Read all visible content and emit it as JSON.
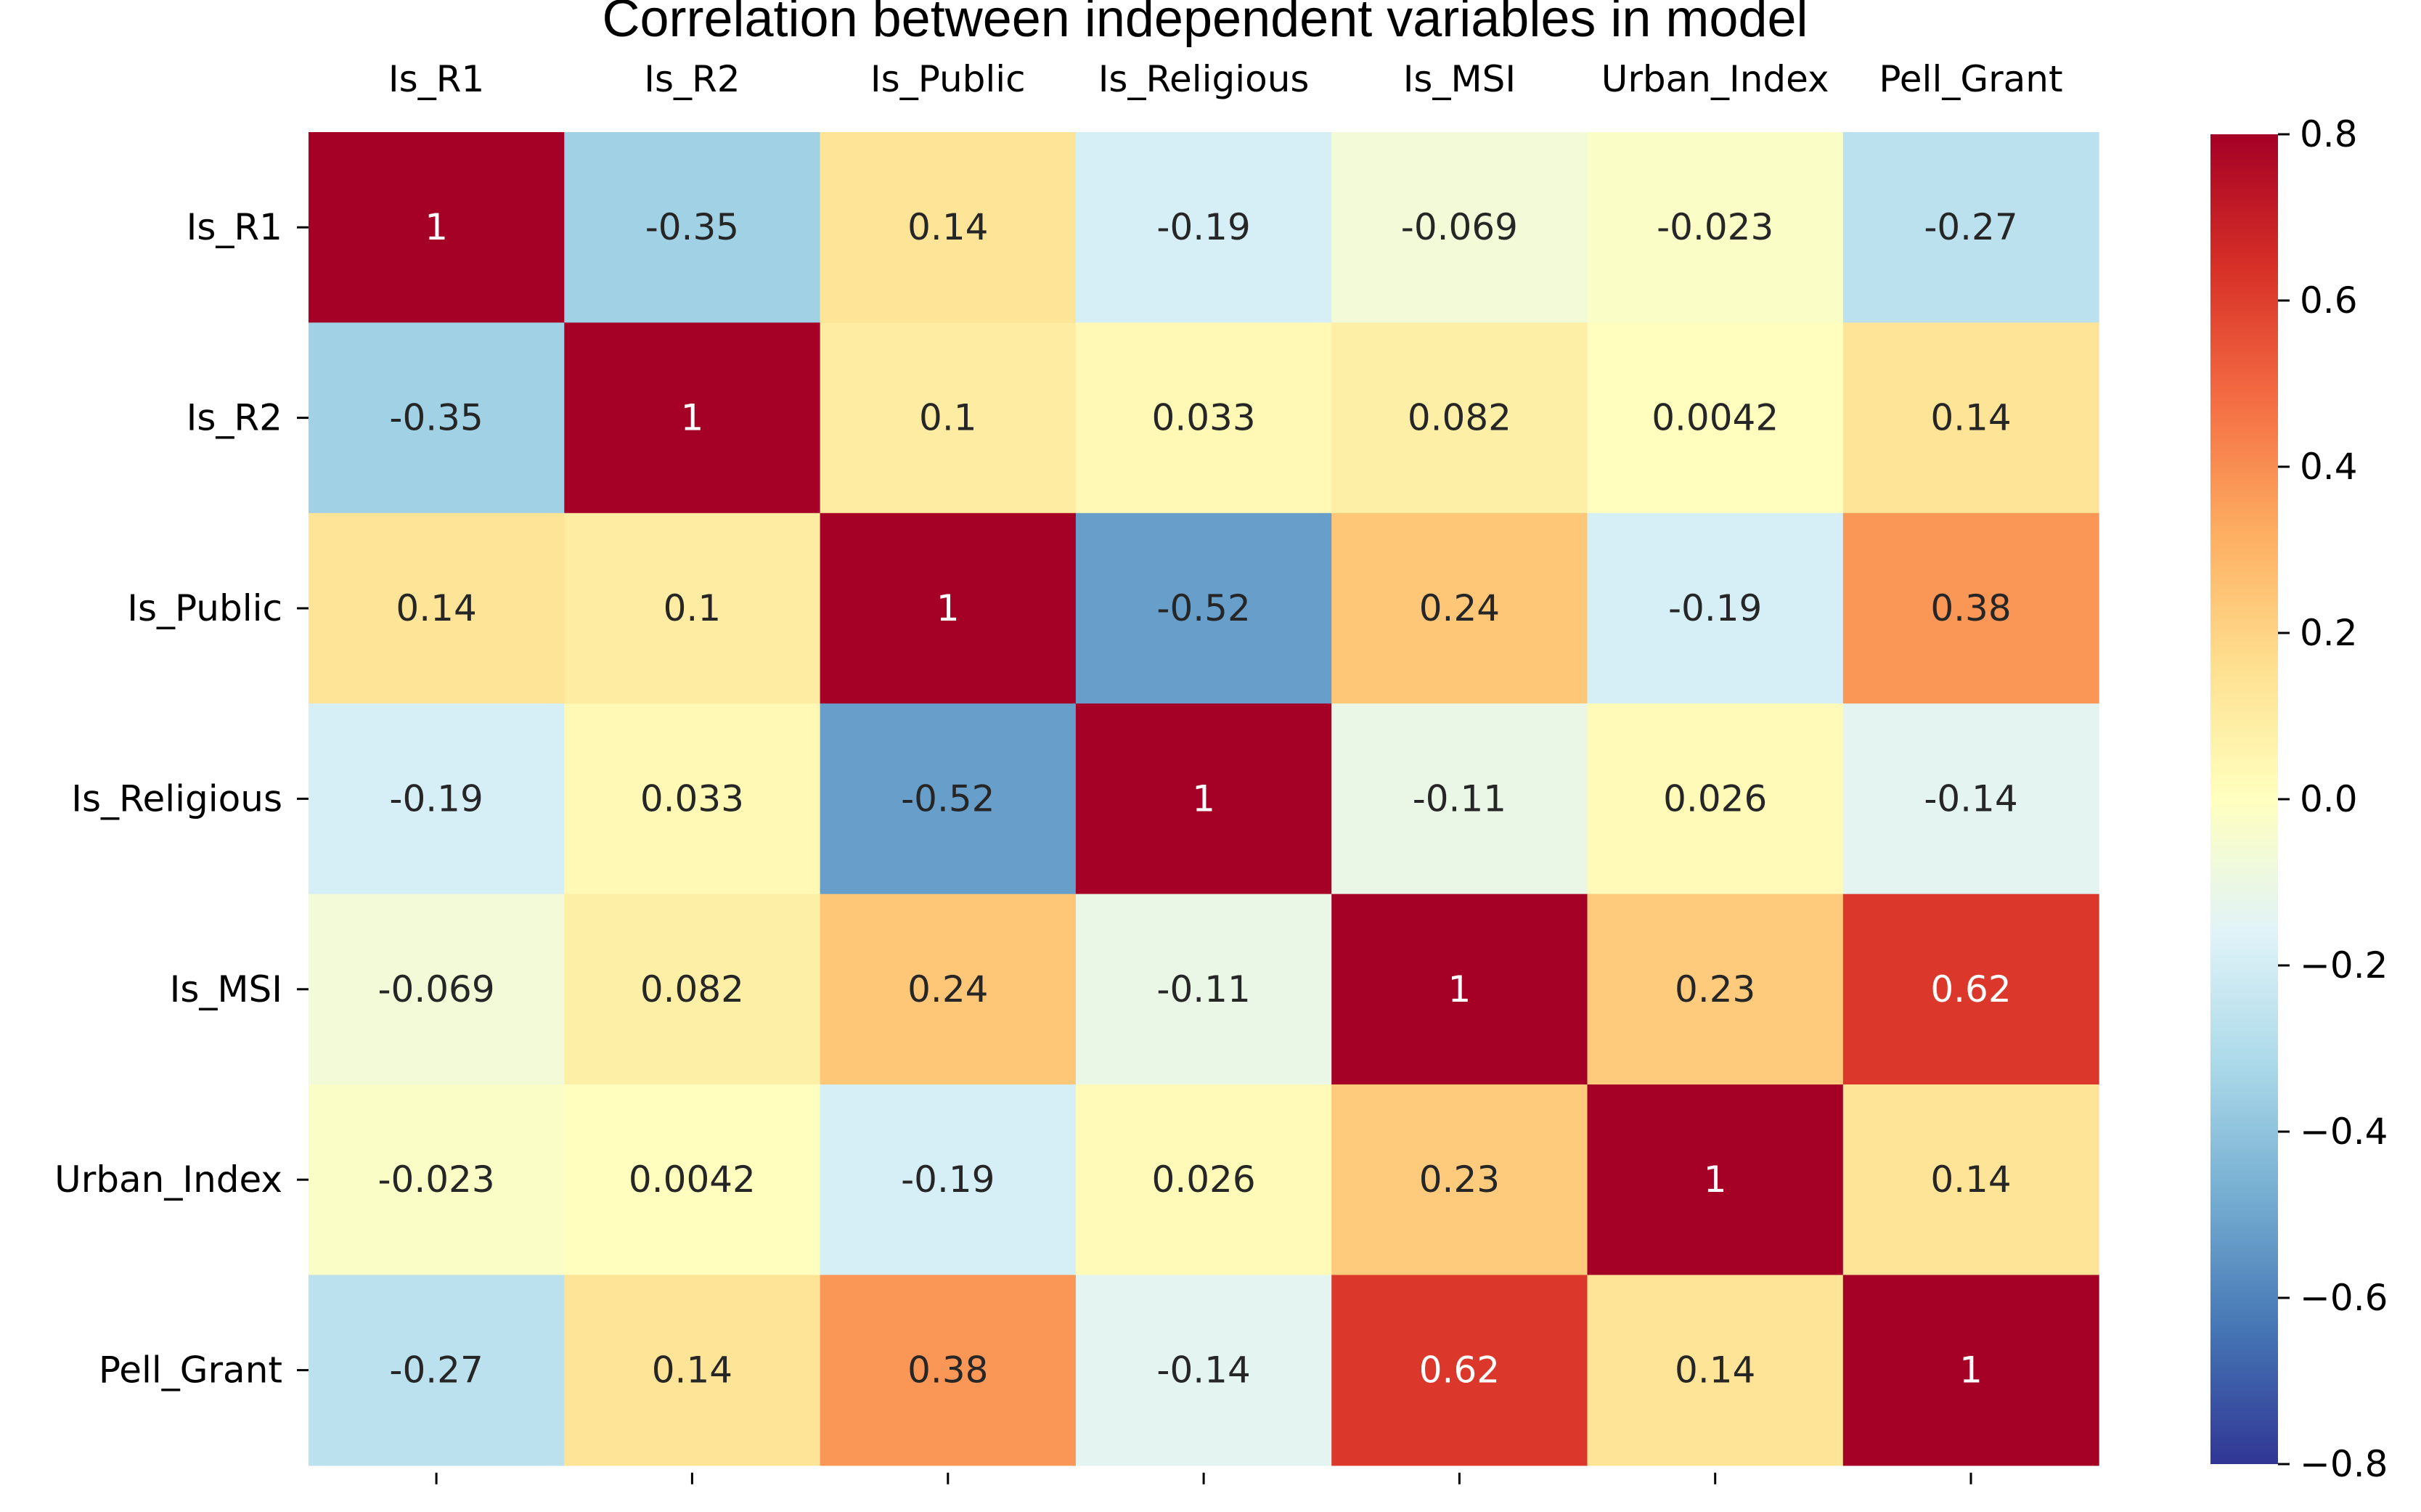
{
  "chart_data": {
    "type": "heatmap",
    "title": "Correlation between independent variables in model",
    "row_labels": [
      "Is_R1",
      "Is_R2",
      "Is_Public",
      "Is_Religious",
      "Is_MSI",
      "Urban_Index",
      "Pell_Grant"
    ],
    "col_labels": [
      "Is_R1",
      "Is_R2",
      "Is_Public",
      "Is_Religious",
      "Is_MSI",
      "Urban_Index",
      "Pell_Grant"
    ],
    "values": [
      [
        1,
        -0.35,
        0.14,
        -0.19,
        -0.069,
        -0.023,
        -0.27
      ],
      [
        -0.35,
        1,
        0.1,
        0.033,
        0.082,
        0.0042,
        0.14
      ],
      [
        0.14,
        0.1,
        1,
        -0.52,
        0.24,
        -0.19,
        0.38
      ],
      [
        -0.19,
        0.033,
        -0.52,
        1,
        -0.11,
        0.026,
        -0.14
      ],
      [
        -0.069,
        0.082,
        0.24,
        -0.11,
        1,
        0.23,
        0.62
      ],
      [
        -0.023,
        0.0042,
        -0.19,
        0.026,
        0.23,
        1,
        0.14
      ],
      [
        -0.27,
        0.14,
        0.38,
        -0.14,
        0.62,
        0.14,
        1
      ]
    ],
    "annotations": [
      [
        "1",
        "-0.35",
        "0.14",
        "-0.19",
        "-0.069",
        "-0.023",
        "-0.27"
      ],
      [
        "-0.35",
        "1",
        "0.1",
        "0.033",
        "0.082",
        "0.0042",
        "0.14"
      ],
      [
        "0.14",
        "0.1",
        "1",
        "-0.52",
        "0.24",
        "-0.19",
        "0.38"
      ],
      [
        "-0.19",
        "0.033",
        "-0.52",
        "1",
        "-0.11",
        "0.026",
        "-0.14"
      ],
      [
        "-0.069",
        "0.082",
        "0.24",
        "-0.11",
        "1",
        "0.23",
        "0.62"
      ],
      [
        "-0.023",
        "0.0042",
        "-0.19",
        "0.026",
        "0.23",
        "1",
        "0.14"
      ],
      [
        "-0.27",
        "0.14",
        "0.38",
        "-0.14",
        "0.62",
        "0.14",
        "1"
      ]
    ],
    "colormap": "RdYlBu_r",
    "color_range": [
      -0.8,
      0.8
    ],
    "colorbar_ticks": [
      0.8,
      0.6,
      0.4,
      0.2,
      0.0,
      -0.2,
      -0.4,
      -0.6,
      -0.8
    ],
    "colorbar_tick_labels": [
      "0.8",
      "0.6",
      "0.4",
      "0.2",
      "0.0",
      "−0.2",
      "−0.4",
      "−0.6",
      "−0.8"
    ],
    "xaxis_position": "top",
    "legend": "colorbar-right"
  }
}
